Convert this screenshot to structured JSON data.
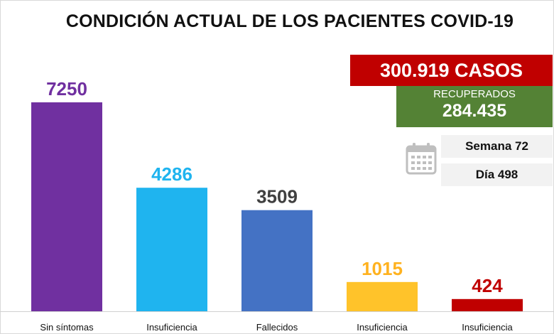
{
  "title": "CONDICIÓN ACTUAL DE LOS PACIENTES COVID-19",
  "stats": {
    "casos": "300.919 CASOS",
    "recuperados_label": "RECUPERADOS",
    "recuperados_value": "284.435",
    "semana": "Semana 72",
    "dia": "Día 498"
  },
  "icons": {
    "calendar": "calendar-icon"
  },
  "chart_data": {
    "type": "bar",
    "title": "CONDICIÓN ACTUAL DE LOS PACIENTES COVID-19",
    "categories": [
      "Sin síntomas",
      "Insuficiencia",
      "Fallecidos",
      "Insuficiencia",
      "Insuficiencia"
    ],
    "values": [
      7250,
      4286,
      3509,
      1015,
      424
    ],
    "labels": [
      "7250",
      "4286",
      "3509",
      "1015",
      "424"
    ],
    "colors": [
      "#7030a0",
      "#1fb4ef",
      "#4472c4",
      "#ffc32a",
      "#c00000"
    ],
    "label_colors": [
      "#7030a0",
      "#1fb4ef",
      "#404040",
      "#ffb21f",
      "#c00000"
    ],
    "xlabel": "",
    "ylabel": "",
    "ylim": [
      0,
      7250
    ],
    "grid": false,
    "legend": "none"
  }
}
